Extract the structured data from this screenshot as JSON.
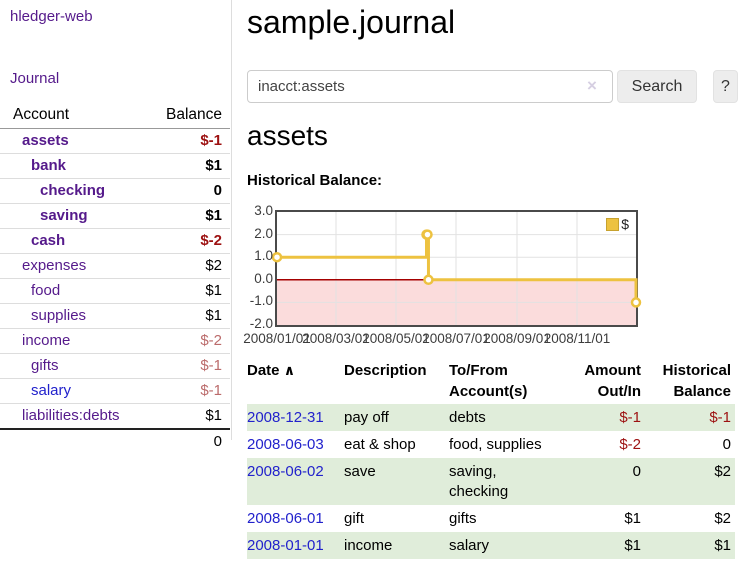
{
  "sidebar": {
    "app_title": "hledger-web",
    "journal_label": "Journal",
    "account_header": "Account",
    "balance_header": "Balance",
    "accounts": [
      {
        "name": "assets",
        "balance": "$-1"
      },
      {
        "name": "bank",
        "balance": "$1"
      },
      {
        "name": "checking",
        "balance": "0"
      },
      {
        "name": "saving",
        "balance": "$1"
      },
      {
        "name": "cash",
        "balance": "$-2"
      },
      {
        "name": "expenses",
        "balance": "$2"
      },
      {
        "name": "food",
        "balance": "$1"
      },
      {
        "name": "supplies",
        "balance": "$1"
      },
      {
        "name": "income",
        "balance": "$-2"
      },
      {
        "name": "gifts",
        "balance": "$-1"
      },
      {
        "name": "salary",
        "balance": "$-1"
      },
      {
        "name": "liabilities:debts",
        "balance": "$1"
      }
    ],
    "total": "0"
  },
  "main": {
    "title": "sample.journal",
    "search": {
      "value": "inacct:assets",
      "clear_icon": "×",
      "search_label": "Search",
      "help_label": "?"
    },
    "account_heading": "assets",
    "chart_heading": "Historical Balance:"
  },
  "chart_data": {
    "type": "line",
    "title": "Historical Balance:",
    "step": true,
    "series": [
      {
        "name": "$",
        "color": "#edc240",
        "points": [
          [
            "2008-01-01",
            1
          ],
          [
            "2008-06-01",
            2
          ],
          [
            "2008-06-02",
            2
          ],
          [
            "2008-06-03",
            0
          ],
          [
            "2008-12-31",
            -1
          ]
        ]
      }
    ],
    "xrange": [
      "2008-01-01",
      "2008-12-31"
    ],
    "ylim": [
      -2,
      3
    ],
    "yticks": [
      {
        "v": 3,
        "label": "3.0"
      },
      {
        "v": 2,
        "label": "2.0"
      },
      {
        "v": 1,
        "label": "1.0"
      },
      {
        "v": 0,
        "label": "0.0"
      },
      {
        "v": -1,
        "label": "-1.0"
      },
      {
        "v": -2,
        "label": "-2.0"
      }
    ],
    "xticks": [
      {
        "v": "2008-01-01",
        "label": "2008/01/01"
      },
      {
        "v": "2008-03-01",
        "label": "2008/03/01"
      },
      {
        "v": "2008-05-01",
        "label": "2008/05/01"
      },
      {
        "v": "2008-07-01",
        "label": "2008/07/01"
      },
      {
        "v": "2008-09-01",
        "label": "2008/09/01"
      },
      {
        "v": "2008-11-01",
        "label": "2008/11/01"
      }
    ],
    "grid": true,
    "legend_position": "top-right",
    "negative_region_color": "#fbdcdc",
    "zero_line_color": "#a40000",
    "grid_color": "#e2e2e2"
  },
  "transactions": {
    "headers": {
      "date": "Date",
      "sort_icon": "∧",
      "description": "Description",
      "tofrom_line1": "To/From",
      "tofrom_line2": "Account(s)",
      "amount_line1": "Amount",
      "amount_line2": "Out/In",
      "balance_line1": "Historical",
      "balance_line2": "Balance"
    },
    "rows": [
      {
        "date": "2008-12-31",
        "description": "pay off",
        "accounts": "debts",
        "amount": "$-1",
        "balance": "$-1"
      },
      {
        "date": "2008-06-03",
        "description": "eat & shop",
        "accounts": "food, supplies",
        "amount": "$-2",
        "balance": "0"
      },
      {
        "date": "2008-06-02",
        "description": "save",
        "accounts": "saving, checking",
        "amount": "0",
        "balance": "$2"
      },
      {
        "date": "2008-06-01",
        "description": "gift",
        "accounts": "gifts",
        "amount": "$1",
        "balance": "$2"
      },
      {
        "date": "2008-01-01",
        "description": "income",
        "accounts": "salary",
        "amount": "$1",
        "balance": "$1"
      }
    ]
  }
}
